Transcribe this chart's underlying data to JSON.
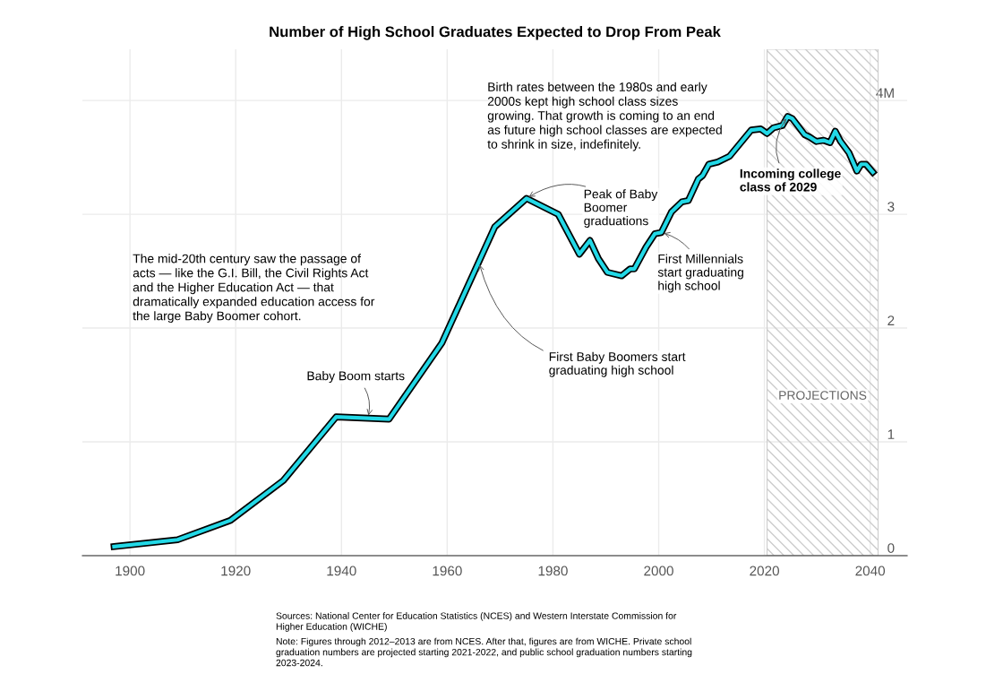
{
  "chart_data": {
    "type": "line",
    "title": "Number of High School Graduates Expected to Drop From Peak",
    "x": [
      1897,
      1909,
      1919,
      1929,
      1939,
      1949,
      1959,
      1969,
      1975,
      1981,
      1985,
      1987,
      1988.6,
      1990.3,
      1993,
      1994.6,
      1995.4,
      1997.6,
      1999.3,
      2000.5,
      2002.4,
      2004.4,
      2005.6,
      2007.5,
      2008.3,
      2009.5,
      2011.2,
      2013.4,
      2017.5,
      2019.3,
      2020.5,
      2021.7,
      2023.4,
      2024.4,
      2025.3,
      2027.6,
      2028.5,
      2029.8,
      2031.2,
      2032.4,
      2033.4,
      2034.4,
      2036,
      2037.5,
      2038.3,
      2039.2,
      2040.5
    ],
    "series": [
      {
        "color": "#22d8e6",
        "values": [
          0.08,
          0.14,
          0.31,
          0.66,
          1.22,
          1.2,
          1.87,
          2.89,
          3.14,
          3.0,
          2.65,
          2.77,
          2.61,
          2.49,
          2.46,
          2.52,
          2.52,
          2.71,
          2.83,
          2.84,
          3.02,
          3.11,
          3.12,
          3.31,
          3.34,
          3.44,
          3.46,
          3.51,
          3.74,
          3.75,
          3.71,
          3.76,
          3.78,
          3.86,
          3.84,
          3.7,
          3.68,
          3.64,
          3.65,
          3.63,
          3.73,
          3.64,
          3.54,
          3.38,
          3.44,
          3.44,
          3.37
        ]
      }
    ],
    "xlim": [
      1891,
      2047
    ],
    "xticks": [
      1900,
      1920,
      1940,
      1960,
      1980,
      2000,
      2020,
      2040
    ],
    "ylim": [
      0,
      4.45
    ],
    "yticks": [
      0,
      1,
      2,
      3,
      {
        "value": 4,
        "label": "4M"
      }
    ],
    "grid": true,
    "bands": [
      {
        "axis": "x",
        "from": 2020.5,
        "to": 2041.5,
        "label": "PROJECTIONS",
        "color": "#cccccc"
      }
    ],
    "annotations": [
      "The mid-20th century saw the passage of\nacts — like the G.I. Bill, the Civil Rights Act\nand the Higher Education Act — that\ndramatically expanded education access for\nthe large Baby Boomer cohort.",
      "Birth rates between the 1980s and early\n2000s kept high school class sizes\ngrowing. That growth is coming to an end\nas future high school classes are expected\nto shrink in size, indefinitely.",
      {
        "text": "Baby Boom starts",
        "x": 1945,
        "y": 1.21
      },
      {
        "text": "Peak of Baby\nBoomer\ngraduations",
        "x": 1975,
        "y": 3.14
      },
      {
        "text": "First Baby Boomers start\ngraduating high school",
        "x": 1966,
        "y": 2.58
      },
      {
        "text": "First Millennials\nstart graduating\nhigh school",
        "x": 2000.5,
        "y": 2.84
      },
      {
        "text": "Incoming college\nclass of 2029",
        "x": 2024.4,
        "y": 3.86
      },
      "Sources: National Center for Education Statistics (NCES) and Western Interstate Commission for\nHigher Education (WICHE)",
      "Note: Figures through 2012–2013 are from NCES. After that, figures are from WICHE. Private school\ngraduation numbers are projected starting 2021-2022, and public school graduation numbers starting\n2023-2024."
    ]
  }
}
